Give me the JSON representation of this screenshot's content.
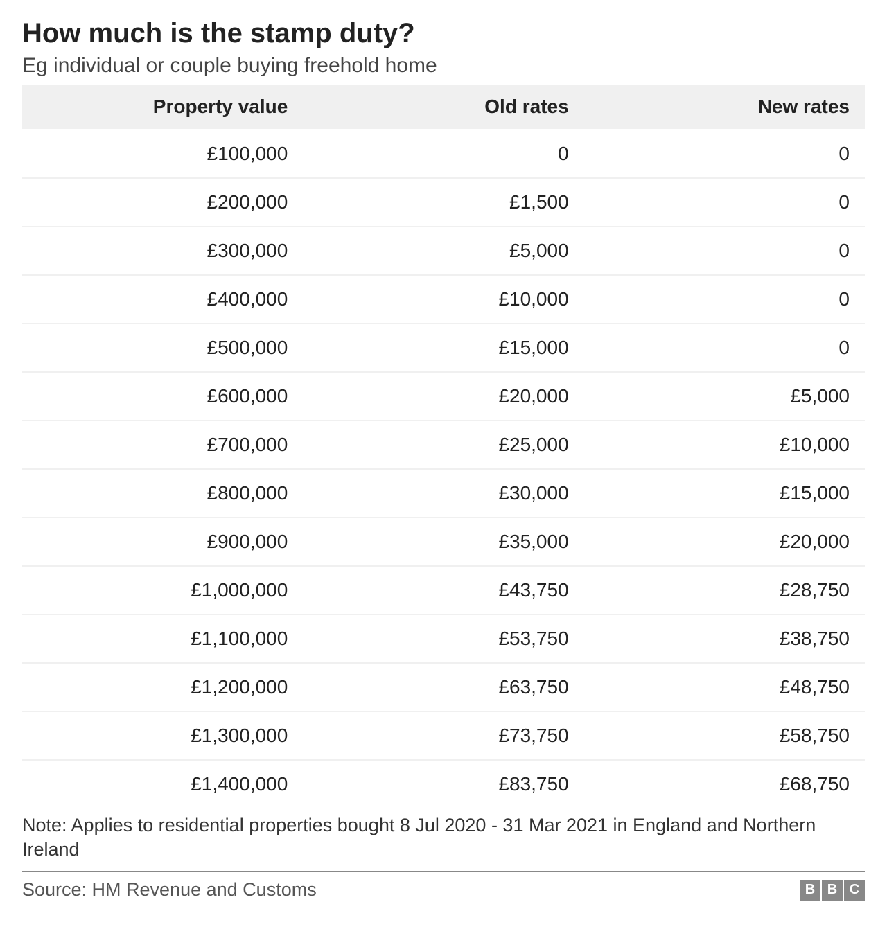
{
  "title": "How much is the stamp duty?",
  "subtitle": "Eg individual or couple buying freehold home",
  "table": {
    "type": "table",
    "columns": [
      "Property value",
      "Old rates",
      "New rates"
    ],
    "rows": [
      [
        "£100,000",
        "0",
        "0"
      ],
      [
        "£200,000",
        "£1,500",
        "0"
      ],
      [
        "£300,000",
        "£5,000",
        "0"
      ],
      [
        "£400,000",
        "£10,000",
        "0"
      ],
      [
        "£500,000",
        "£15,000",
        "0"
      ],
      [
        "£600,000",
        "£20,000",
        "£5,000"
      ],
      [
        "£700,000",
        "£25,000",
        "£10,000"
      ],
      [
        "£800,000",
        "£30,000",
        "£15,000"
      ],
      [
        "£900,000",
        "£35,000",
        "£20,000"
      ],
      [
        "£1,000,000",
        "£43,750",
        "£28,750"
      ],
      [
        "£1,100,000",
        "£53,750",
        "£38,750"
      ],
      [
        "£1,200,000",
        "£63,750",
        "£48,750"
      ],
      [
        "£1,300,000",
        "£73,750",
        "£58,750"
      ],
      [
        "£1,400,000",
        "£83,750",
        "£68,750"
      ]
    ],
    "header_background": "#f0f0f0",
    "row_border_color": "#f0f0f0",
    "text_align": "right",
    "header_fontsize": 28,
    "cell_fontsize": 28,
    "header_fontweight": 700,
    "cell_fontweight": 400
  },
  "note": "Note: Applies to residential properties bought 8 Jul 2020 - 31 Mar 2021 in England and Northern Ireland",
  "source": "Source: HM Revenue and Customs",
  "logo": {
    "letters": [
      "B",
      "B",
      "C"
    ],
    "box_color": "#888888",
    "text_color": "#ffffff"
  },
  "colors": {
    "background": "#ffffff",
    "title_color": "#222222",
    "subtitle_color": "#444444",
    "note_color": "#333333",
    "source_color": "#555555",
    "divider_color": "#888888"
  },
  "typography": {
    "title_fontsize": 40,
    "subtitle_fontsize": 30,
    "note_fontsize": 27,
    "source_fontsize": 27,
    "font_family": "Arial, Helvetica, sans-serif"
  }
}
